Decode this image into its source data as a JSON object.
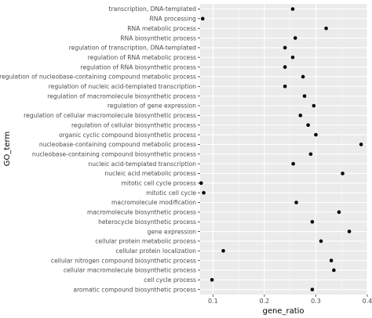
{
  "chart_data": {
    "type": "scatter",
    "title": "",
    "xlabel": "gene_ratio",
    "ylabel": "GO_term",
    "xlim": [
      0.075,
      0.4
    ],
    "x_ticks": [
      0.1,
      0.2,
      0.3,
      0.4
    ],
    "x_tick_labels": [
      "0.1",
      "0.2",
      "0.3",
      "0.4"
    ],
    "grid": true,
    "legend": "none",
    "colors": {
      "panel": "#ebebeb",
      "grid_major": "#ffffff",
      "point": "#000000"
    },
    "categories": [
      "transcription, DNA-templated",
      "RNA processing",
      "RNA metabolic process",
      "RNA biosynthetic process",
      "regulation of transcription, DNA-templated",
      "regulation of RNA metabolic process",
      "regulation of RNA biosynthetic process",
      "regulation of nucleobase-containing compound metabolic process",
      "regulation of nucleic acid-templated transcription",
      "regulation of macromolecule biosynthetic process",
      "regulation of gene expression",
      "regulation of cellular macromolecule biosynthetic process",
      "regulation of cellular biosynthetic process",
      "organic cyclic compound biosynthetic process",
      "nucleobase-containing compound metabolic process",
      "nucleobase-containing compound biosynthetic process",
      "nucleic acid-templated transcription",
      "nucleic acid metabolic process",
      "mitotic cell cycle process",
      "mitotic cell cycle",
      "macromolecule modification",
      "macromolecule biosynthetic process",
      "heterocycle biosynthetic process",
      "gene expression",
      "cellular protein metabolic process",
      "cellular protein localization",
      "cellular nitrogen compound biosynthetic process",
      "cellular macromolecule biosynthetic process",
      "cell cycle process",
      "aromatic compound biosynthetic process"
    ],
    "values": [
      0.255,
      0.08,
      0.32,
      0.26,
      0.24,
      0.255,
      0.24,
      0.275,
      0.24,
      0.278,
      0.296,
      0.27,
      0.285,
      0.3,
      0.388,
      0.29,
      0.256,
      0.352,
      0.077,
      0.082,
      0.262,
      0.345,
      0.293,
      0.365,
      0.31,
      0.12,
      0.33,
      0.335,
      0.098,
      0.293
    ]
  }
}
